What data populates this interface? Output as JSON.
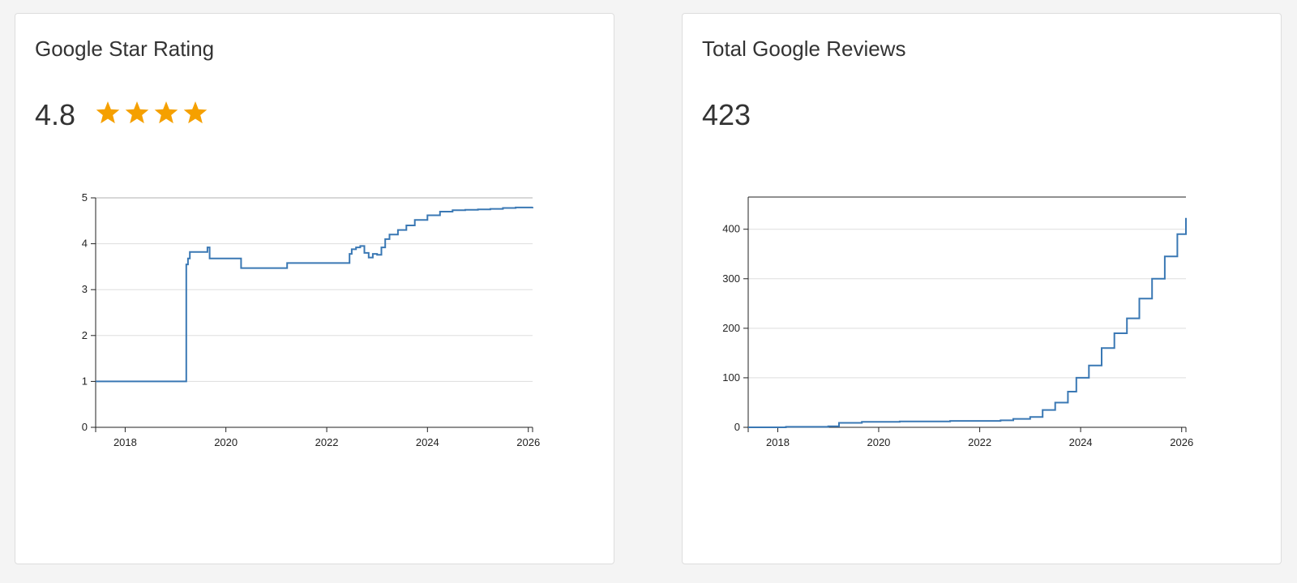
{
  "rating_card": {
    "title": "Google Star Rating",
    "value": "4.8",
    "stars_shown": 4,
    "star_color": "#f5a000"
  },
  "reviews_card": {
    "title": "Total Google Reviews",
    "value": "423"
  },
  "colors": {
    "line": "#3a78b4",
    "grid": "#dddddd",
    "axis": "#222222"
  },
  "chart_data": [
    {
      "type": "line",
      "title": "",
      "xlabel": "",
      "ylabel": "",
      "grid": true,
      "step": true,
      "xlim": [
        "2017-06-01",
        "2026-02-01"
      ],
      "ylim": [
        0,
        5
      ],
      "x_ticks": [
        "2018",
        "2020",
        "2022",
        "2024",
        "2026"
      ],
      "y_ticks": [
        "0",
        "1",
        "2",
        "3",
        "4",
        "5"
      ],
      "series": [
        {
          "x": [
            "2017-06-01",
            "2019-03-20",
            "2019-04-01",
            "2019-04-15",
            "2019-08-01",
            "2019-08-20",
            "2019-09-05",
            "2020-04-20",
            "2021-03-20",
            "2022-06-15",
            "2022-07-01",
            "2022-08-01",
            "2022-09-01",
            "2022-10-01",
            "2022-11-01",
            "2022-12-01",
            "2023-01-01",
            "2023-02-01",
            "2023-03-01",
            "2023-04-01",
            "2023-06-01",
            "2023-08-01",
            "2023-10-01",
            "2024-01-01",
            "2024-04-01",
            "2024-07-01",
            "2024-10-01",
            "2025-01-01",
            "2025-04-01",
            "2025-07-01",
            "2025-10-01",
            "2026-02-01"
          ],
          "y": [
            1.0,
            3.55,
            3.68,
            3.82,
            3.82,
            3.92,
            3.68,
            3.47,
            3.58,
            3.78,
            3.88,
            3.92,
            3.95,
            3.8,
            3.7,
            3.78,
            3.76,
            3.92,
            4.1,
            4.2,
            4.3,
            4.4,
            4.52,
            4.62,
            4.7,
            4.73,
            4.74,
            4.75,
            4.76,
            4.78,
            4.79,
            4.8
          ]
        }
      ]
    },
    {
      "type": "line",
      "title": "",
      "xlabel": "",
      "ylabel": "",
      "grid": true,
      "step": true,
      "xlim": [
        "2017-06-01",
        "2026-02-01"
      ],
      "ylim": [
        0,
        465
      ],
      "x_ticks": [
        "2018",
        "2020",
        "2022",
        "2024",
        "2026"
      ],
      "y_ticks": [
        "0",
        "100",
        "200",
        "300",
        "400"
      ],
      "series": [
        {
          "x": [
            "2017-06-01",
            "2018-03-01",
            "2019-01-01",
            "2019-03-20",
            "2019-09-01",
            "2020-06-01",
            "2021-06-01",
            "2022-06-01",
            "2022-09-01",
            "2023-01-01",
            "2023-04-01",
            "2023-07-01",
            "2023-10-01",
            "2023-12-01",
            "2024-03-01",
            "2024-06-01",
            "2024-09-01",
            "2024-12-01",
            "2025-03-01",
            "2025-06-01",
            "2025-09-01",
            "2025-12-01",
            "2026-02-01"
          ],
          "y": [
            0,
            1,
            2,
            9,
            11,
            12,
            13,
            14,
            17,
            21,
            35,
            50,
            72,
            100,
            125,
            160,
            190,
            220,
            260,
            300,
            345,
            390,
            423
          ]
        }
      ]
    }
  ]
}
